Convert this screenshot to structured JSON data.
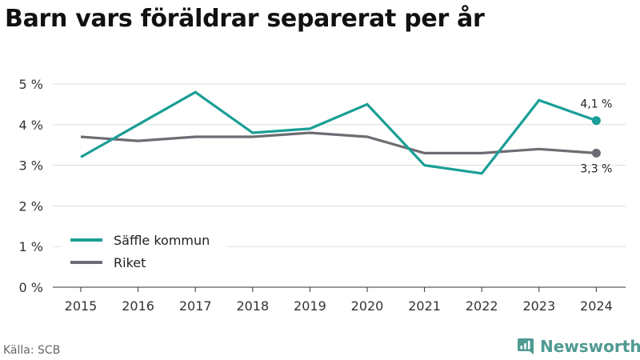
{
  "title": "Barn vars föräldrar separerat per år",
  "source": "Källa: SCB",
  "brand": {
    "name": "Newsworthy",
    "icon": "newsworthy-logo-icon"
  },
  "chart_data": {
    "type": "line",
    "x": [
      "2015",
      "2016",
      "2017",
      "2018",
      "2019",
      "2020",
      "2021",
      "2022",
      "2023",
      "2024"
    ],
    "y_ticks": [
      "0 %",
      "1 %",
      "2 %",
      "3 %",
      "4 %",
      "5 %"
    ],
    "ylim": [
      0,
      5
    ],
    "grid": true,
    "legend_position": "bottom-left",
    "series": [
      {
        "name": "Säffle kommun",
        "color": "#1a9e96",
        "values": [
          3.2,
          4.0,
          4.8,
          3.8,
          3.9,
          4.5,
          3.0,
          2.8,
          4.6,
          4.1
        ],
        "end_label": "4,1 %"
      },
      {
        "name": "Riket",
        "color": "#6d6c73",
        "values": [
          3.7,
          3.6,
          3.7,
          3.7,
          3.8,
          3.7,
          3.3,
          3.3,
          3.4,
          3.3
        ],
        "end_label": "3,3 %"
      }
    ]
  }
}
